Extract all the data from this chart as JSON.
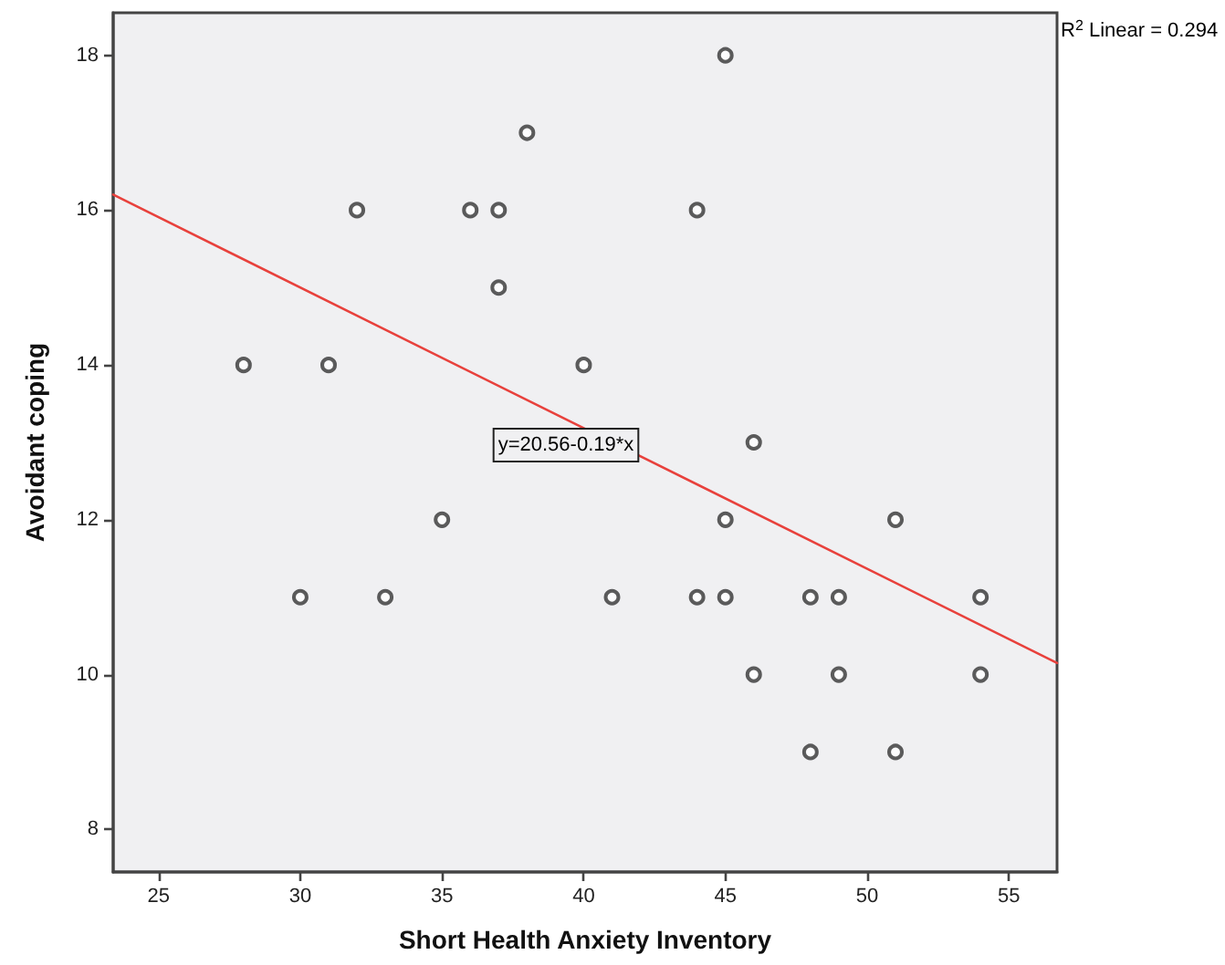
{
  "chart_data": {
    "type": "scatter",
    "xlabel": "Short Health Anxiety Inventory",
    "ylabel": "Avoidant coping",
    "xlim": [
      23.4,
      56.7
    ],
    "xticks": [
      25,
      30,
      35,
      40,
      45,
      50,
      55
    ],
    "ylim": [
      7.45,
      18.55
    ],
    "yticks": [
      8,
      10,
      12,
      14,
      16,
      18
    ],
    "grid": false,
    "series": [
      {
        "color": "#333333",
        "marker": "circle",
        "x": [
          28,
          30,
          31,
          32,
          33,
          35,
          36,
          37,
          37,
          38,
          40,
          41,
          44,
          44,
          45,
          45,
          45,
          46,
          46,
          48,
          48,
          49,
          49,
          51,
          51,
          54,
          54
        ],
        "values": [
          14,
          11,
          14,
          16,
          11,
          12,
          16,
          16,
          15,
          17,
          14,
          11,
          16,
          11,
          18,
          12,
          11,
          13,
          10,
          11,
          9,
          11,
          10,
          12,
          9,
          11,
          10
        ]
      },
      {
        "type": "line",
        "color": "#e8413c",
        "x": [
          23.4,
          56.7
        ],
        "values": [
          16.2,
          10.15
        ]
      }
    ],
    "annotations": [
      "y=20.56-0.19*x",
      "R$^{2}$ Linear = 0.294"
    ]
  }
}
